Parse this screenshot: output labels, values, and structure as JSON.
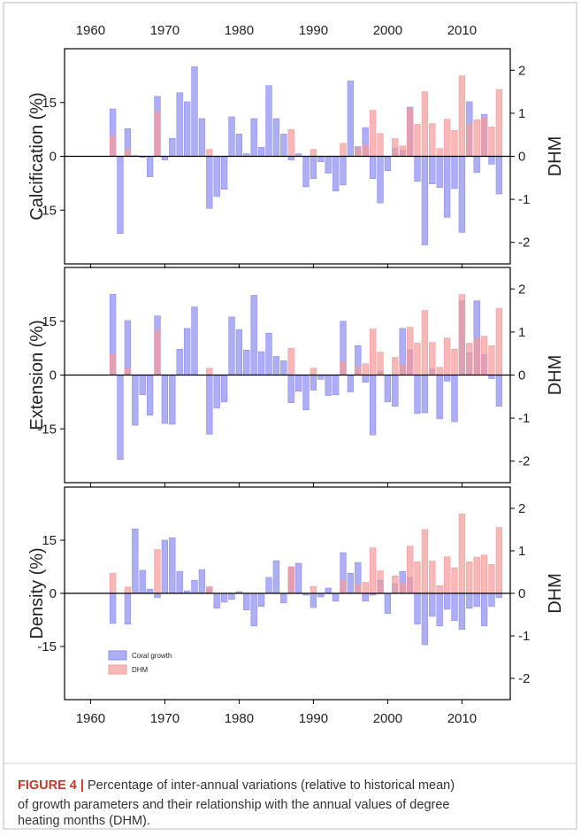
{
  "chart_data": [
    {
      "type": "bar",
      "y_label": "Calcification (%)",
      "y2_label": "DHM",
      "x": [
        1963,
        1964,
        1965,
        1966,
        1967,
        1968,
        1969,
        1970,
        1971,
        1972,
        1973,
        1974,
        1975,
        1976,
        1977,
        1978,
        1979,
        1980,
        1981,
        1982,
        1983,
        1984,
        1985,
        1986,
        1987,
        1988,
        1989,
        1990,
        1991,
        1992,
        1993,
        1994,
        1995,
        1996,
        1997,
        1998,
        1999,
        2000,
        2001,
        2002,
        2003,
        2004,
        2005,
        2006,
        2007,
        2008,
        2009,
        2010,
        2011,
        2012,
        2013,
        2014,
        2015
      ],
      "series": [
        {
          "color": "#8c8cf0",
          "values": [
            13.2,
            -21.5,
            7.7,
            0.2,
            -0.3,
            -5.7,
            16.7,
            -1,
            5,
            17.7,
            15.2,
            25,
            10.5,
            -14.5,
            -11.2,
            -9.2,
            11,
            6.2,
            0.7,
            10.5,
            2.5,
            19.7,
            10.5,
            6.2,
            -1,
            0.7,
            -8.5,
            -6.2,
            -1.5,
            -4.7,
            -9.7,
            -8,
            21,
            2.7,
            8,
            -6.2,
            -13,
            -4,
            2.2,
            1.7,
            13.7,
            -7,
            -24.7,
            -7.7,
            -8.7,
            -17,
            -9,
            -21.2,
            15.2,
            -4.5,
            11.7,
            -2.2,
            -10.5
          ]
        },
        {
          "color": "#f49a9a",
          "axis": "y2",
          "values": [
            0.47,
            null,
            0.15,
            null,
            null,
            null,
            1.03,
            null,
            null,
            null,
            null,
            null,
            null,
            0.16,
            null,
            null,
            null,
            null,
            null,
            null,
            null,
            null,
            null,
            null,
            0.62,
            null,
            null,
            0.16,
            null,
            null,
            null,
            0.3,
            null,
            0.2,
            0.26,
            1.07,
            0.53,
            null,
            0.41,
            0.24,
            1.11,
            0.74,
            1.5,
            0.76,
            0.18,
            0.86,
            0.6,
            1.87,
            0.74,
            0.85,
            0.9,
            0.68,
            1.55
          ]
        }
      ],
      "xlim": [
        1956.5,
        2016.5
      ],
      "xticks": [
        1960,
        1970,
        1980,
        1990,
        2000,
        2010
      ],
      "ylim": [
        -30,
        30
      ],
      "yticks": [
        15,
        0,
        -15
      ],
      "y2lim": [
        -2.5,
        2.5
      ],
      "y2ticks": [
        2,
        1,
        0,
        -1,
        -2
      ]
    },
    {
      "type": "bar",
      "y_label": "Extension (%)",
      "y2_label": "DHM",
      "x": [
        1963,
        1964,
        1965,
        1966,
        1967,
        1968,
        1969,
        1970,
        1971,
        1972,
        1973,
        1974,
        1975,
        1976,
        1977,
        1978,
        1979,
        1980,
        1981,
        1982,
        1983,
        1984,
        1985,
        1986,
        1987,
        1988,
        1989,
        1990,
        1991,
        1992,
        1993,
        1994,
        1995,
        1996,
        1997,
        1998,
        1999,
        2000,
        2001,
        2002,
        2003,
        2004,
        2005,
        2006,
        2007,
        2008,
        2009,
        2010,
        2011,
        2012,
        2013,
        2014,
        2015
      ],
      "series": [
        {
          "color": "#8c8cf0",
          "values": [
            22.5,
            -23.5,
            15.2,
            -14,
            -5.5,
            -11.2,
            16.5,
            -13.5,
            -13.7,
            7.2,
            13,
            19,
            0,
            -16.5,
            -9.2,
            -7.5,
            16.2,
            12.7,
            7,
            22.2,
            6.5,
            11.7,
            5.2,
            4,
            -7.7,
            -4.5,
            -9.7,
            -4.2,
            -1.2,
            -5.7,
            -5.5,
            15,
            -4.7,
            8.2,
            -2,
            -16.7,
            1,
            -7.5,
            -8.7,
            13,
            7,
            -10.7,
            -10.5,
            1.7,
            -12.2,
            -1.7,
            -13,
            20.7,
            6.2,
            20.7,
            5.7,
            -1,
            -8.7
          ]
        },
        {
          "color": "#f49a9a",
          "axis": "y2",
          "values": [
            0.47,
            null,
            0.15,
            null,
            null,
            null,
            1.03,
            null,
            null,
            null,
            null,
            null,
            null,
            0.16,
            null,
            null,
            null,
            null,
            null,
            null,
            null,
            null,
            null,
            null,
            0.62,
            null,
            null,
            0.16,
            null,
            null,
            null,
            0.3,
            null,
            0.2,
            0.26,
            1.07,
            0.53,
            null,
            0.41,
            0.24,
            1.11,
            0.74,
            1.5,
            0.76,
            0.18,
            0.86,
            0.6,
            1.87,
            0.74,
            0.85,
            0.9,
            0.68,
            1.55
          ]
        }
      ],
      "xlim": [
        1956.5,
        2016.5
      ],
      "xticks": [
        1960,
        1970,
        1980,
        1990,
        2000,
        2010
      ],
      "ylim": [
        -30,
        30
      ],
      "yticks": [
        15,
        0,
        -15
      ],
      "y2lim": [
        -2.5,
        2.5
      ],
      "y2ticks": [
        2,
        1,
        0,
        -1,
        -2
      ]
    },
    {
      "type": "bar",
      "y_label": "Density (%)",
      "y2_label": "DHM",
      "legend": "lower left",
      "x": [
        1963,
        1964,
        1965,
        1966,
        1967,
        1968,
        1969,
        1970,
        1971,
        1972,
        1973,
        1974,
        1975,
        1976,
        1977,
        1978,
        1979,
        1980,
        1981,
        1982,
        1983,
        1984,
        1985,
        1986,
        1987,
        1988,
        1989,
        1990,
        1991,
        1992,
        1993,
        1994,
        1995,
        1996,
        1997,
        1998,
        1999,
        2000,
        2001,
        2002,
        2003,
        2004,
        2005,
        2006,
        2007,
        2008,
        2009,
        2010,
        2011,
        2012,
        2013,
        2014,
        2015
      ],
      "series": [
        {
          "name": "Coral growth",
          "color": "#8c8cf0",
          "values": [
            -8.5,
            0,
            -8.7,
            18.2,
            6.5,
            1.2,
            -1.2,
            15,
            15.7,
            6.2,
            0.7,
            3.7,
            6.7,
            1.5,
            -4.2,
            -2.5,
            -1.7,
            0.5,
            -4.7,
            -9.2,
            -3.7,
            4.5,
            9.2,
            -2.7,
            7.5,
            8.5,
            -0.5,
            -4,
            -1,
            1.5,
            -2.2,
            11.5,
            5.7,
            8.7,
            -2.2,
            -0.5,
            3.7,
            -5.7,
            2.7,
            6.2,
            4.5,
            -8.7,
            -14.5,
            -6.5,
            -9.2,
            -4.5,
            -7.7,
            -10.2,
            -4.2,
            -3.7,
            -9.2,
            -3.7,
            -1.2
          ]
        },
        {
          "name": "DHM",
          "color": "#f49a9a",
          "axis": "y2",
          "values": [
            0.47,
            null,
            0.15,
            null,
            null,
            null,
            1.03,
            null,
            null,
            null,
            null,
            null,
            null,
            0.16,
            null,
            null,
            null,
            null,
            null,
            null,
            null,
            null,
            null,
            null,
            0.62,
            null,
            null,
            0.16,
            null,
            null,
            null,
            0.3,
            null,
            0.2,
            0.26,
            1.07,
            0.53,
            null,
            0.41,
            0.24,
            1.11,
            0.74,
            1.5,
            0.76,
            0.18,
            0.86,
            0.6,
            1.87,
            0.74,
            0.85,
            0.9,
            0.68,
            1.55
          ]
        }
      ],
      "xlim": [
        1956.5,
        2016.5
      ],
      "xticks": [
        1960,
        1970,
        1980,
        1990,
        2000,
        2010
      ],
      "ylim": [
        -30,
        30
      ],
      "yticks": [
        15,
        0,
        -15
      ],
      "y2lim": [
        -2.5,
        2.5
      ],
      "y2ticks": [
        2,
        1,
        0,
        -1,
        -2
      ]
    }
  ],
  "caption": {
    "label": "FIGURE 4 |",
    "lines": [
      " Percentage of inter-annual variations (relative to historical mean)",
      "of growth parameters and their relationship with the annual values of degree",
      "heating months (DHM)."
    ]
  }
}
